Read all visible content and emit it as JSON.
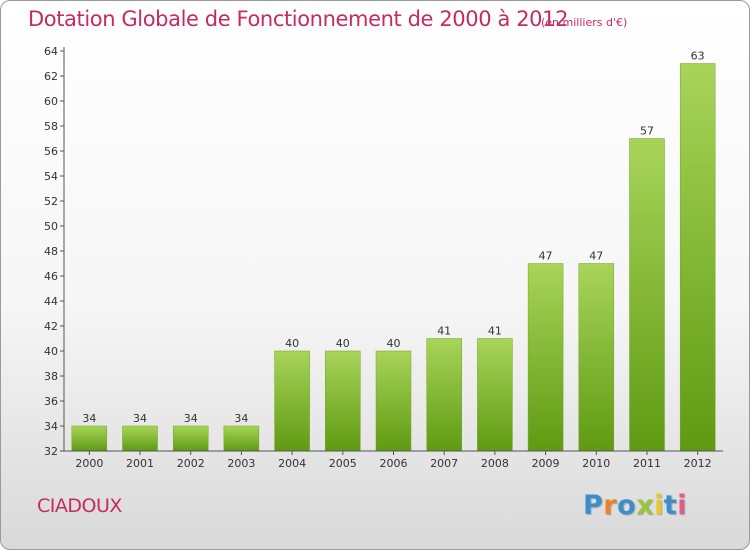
{
  "chart_data": {
    "type": "bar",
    "title": "Dotation Globale de Fonctionnement de 2000 à 2012",
    "subtitle": "(en milliers d'€)",
    "categories": [
      "2000",
      "2001",
      "2002",
      "2003",
      "2004",
      "2005",
      "2006",
      "2007",
      "2008",
      "2009",
      "2010",
      "2011",
      "2012"
    ],
    "values": [
      34,
      34,
      34,
      34,
      40,
      40,
      40,
      41,
      41,
      47,
      47,
      57,
      63
    ],
    "xlabel": "",
    "ylabel": "",
    "ylim": [
      32,
      64
    ],
    "yticks": [
      32,
      34,
      36,
      38,
      40,
      42,
      44,
      46,
      48,
      50,
      52,
      54,
      56,
      58,
      60,
      62,
      64
    ],
    "grid": false,
    "legend": "none",
    "colors": {
      "bar_top": "#a8d45a",
      "bar_bottom": "#5f9a12",
      "title": "#c72a61"
    }
  },
  "footer": {
    "commune": "CIADOUX",
    "logo_letters": [
      "P",
      "r",
      "o",
      "x",
      "i",
      "t",
      "i"
    ],
    "logo_colors": [
      "#3b8ec7",
      "#e8822b",
      "#3b8ec7",
      "#9ac53a",
      "#e8c62c",
      "#3b8ec7",
      "#e05a8c"
    ]
  }
}
